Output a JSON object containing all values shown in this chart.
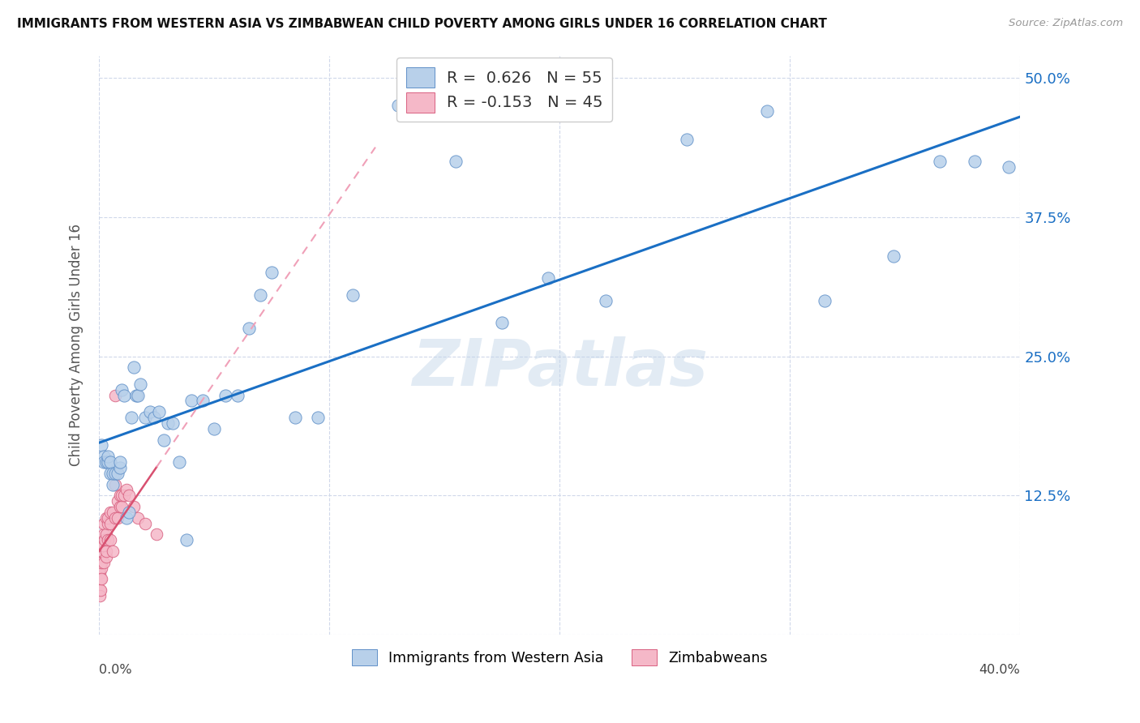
{
  "title": "IMMIGRANTS FROM WESTERN ASIA VS ZIMBABWEAN CHILD POVERTY AMONG GIRLS UNDER 16 CORRELATION CHART",
  "source": "Source: ZipAtlas.com",
  "ylabel": "Child Poverty Among Girls Under 16",
  "blue_R": 0.626,
  "blue_N": 55,
  "pink_R": -0.153,
  "pink_N": 45,
  "blue_marker_color": "#b8d0ea",
  "blue_edge_color": "#6090c8",
  "pink_marker_color": "#f5b8c8",
  "pink_edge_color": "#d86080",
  "blue_line_color": "#1a6fc4",
  "pink_line_color": "#d85070",
  "pink_dash_color": "#f0a0b8",
  "watermark": "ZIPatlas",
  "ytick_vals": [
    0.0,
    0.125,
    0.25,
    0.375,
    0.5
  ],
  "ytick_labels": [
    "",
    "12.5%",
    "25.0%",
    "37.5%",
    "50.0%"
  ],
  "xmax": 0.4,
  "ymax": 0.52,
  "background_color": "#ffffff",
  "grid_color": "#d0d8ea",
  "legend_label_blue": "Immigrants from Western Asia",
  "legend_label_pink": "Zimbabweans",
  "blue_x": [
    0.001,
    0.002,
    0.002,
    0.003,
    0.004,
    0.004,
    0.005,
    0.005,
    0.006,
    0.006,
    0.007,
    0.008,
    0.009,
    0.009,
    0.01,
    0.011,
    0.012,
    0.013,
    0.014,
    0.015,
    0.016,
    0.017,
    0.018,
    0.02,
    0.022,
    0.024,
    0.026,
    0.028,
    0.03,
    0.032,
    0.035,
    0.038,
    0.04,
    0.045,
    0.05,
    0.055,
    0.06,
    0.065,
    0.07,
    0.075,
    0.085,
    0.095,
    0.11,
    0.13,
    0.155,
    0.175,
    0.195,
    0.22,
    0.255,
    0.29,
    0.315,
    0.345,
    0.365,
    0.38,
    0.395
  ],
  "blue_y": [
    0.17,
    0.16,
    0.155,
    0.155,
    0.155,
    0.16,
    0.145,
    0.155,
    0.135,
    0.145,
    0.145,
    0.145,
    0.15,
    0.155,
    0.22,
    0.215,
    0.105,
    0.11,
    0.195,
    0.24,
    0.215,
    0.215,
    0.225,
    0.195,
    0.2,
    0.195,
    0.2,
    0.175,
    0.19,
    0.19,
    0.155,
    0.085,
    0.21,
    0.21,
    0.185,
    0.215,
    0.215,
    0.275,
    0.305,
    0.325,
    0.195,
    0.195,
    0.305,
    0.475,
    0.425,
    0.28,
    0.32,
    0.3,
    0.445,
    0.47,
    0.3,
    0.34,
    0.425,
    0.425,
    0.42
  ],
  "pink_x": [
    0.0002,
    0.0003,
    0.0004,
    0.0005,
    0.0006,
    0.0007,
    0.0008,
    0.001,
    0.001,
    0.001,
    0.0015,
    0.0015,
    0.002,
    0.002,
    0.002,
    0.002,
    0.0025,
    0.003,
    0.003,
    0.003,
    0.003,
    0.004,
    0.004,
    0.004,
    0.005,
    0.005,
    0.005,
    0.006,
    0.006,
    0.007,
    0.007,
    0.007,
    0.008,
    0.008,
    0.009,
    0.009,
    0.01,
    0.01,
    0.011,
    0.012,
    0.013,
    0.015,
    0.017,
    0.02,
    0.025
  ],
  "pink_y": [
    0.055,
    0.04,
    0.06,
    0.035,
    0.05,
    0.065,
    0.04,
    0.06,
    0.05,
    0.065,
    0.075,
    0.08,
    0.065,
    0.08,
    0.09,
    0.1,
    0.085,
    0.09,
    0.07,
    0.075,
    0.105,
    0.1,
    0.085,
    0.105,
    0.1,
    0.085,
    0.11,
    0.075,
    0.11,
    0.105,
    0.135,
    0.215,
    0.105,
    0.12,
    0.115,
    0.125,
    0.115,
    0.125,
    0.125,
    0.13,
    0.125,
    0.115,
    0.105,
    0.1,
    0.09
  ]
}
